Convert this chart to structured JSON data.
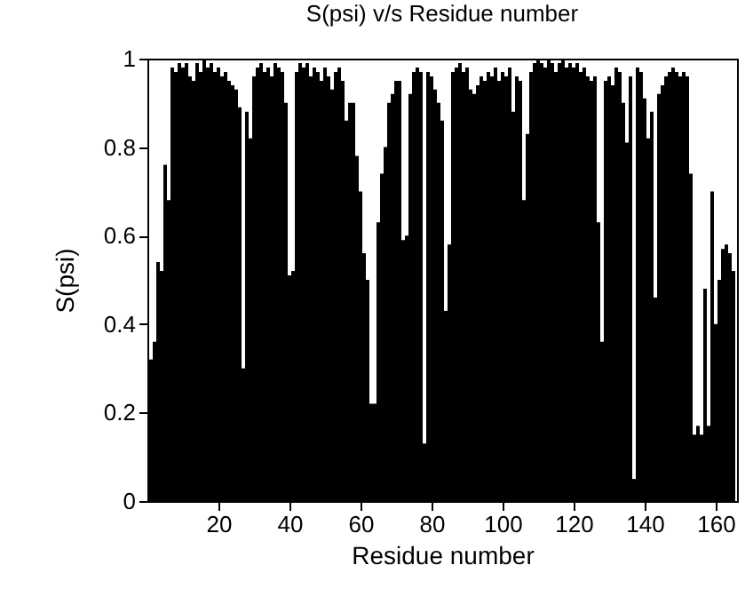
{
  "chart_data": {
    "type": "bar",
    "title": "S(psi) v/s Residue number",
    "xlabel": "Residue number",
    "ylabel": "S(psi)",
    "x": [
      1,
      2,
      3,
      4,
      5,
      6,
      7,
      8,
      9,
      10,
      11,
      12,
      13,
      14,
      15,
      16,
      17,
      18,
      19,
      20,
      21,
      22,
      23,
      24,
      25,
      26,
      27,
      28,
      29,
      30,
      31,
      32,
      33,
      34,
      35,
      36,
      37,
      38,
      39,
      40,
      41,
      42,
      43,
      44,
      45,
      46,
      47,
      48,
      49,
      50,
      51,
      52,
      53,
      54,
      55,
      56,
      57,
      58,
      59,
      60,
      61,
      62,
      63,
      64,
      65,
      66,
      67,
      68,
      69,
      70,
      71,
      72,
      73,
      74,
      75,
      76,
      77,
      78,
      79,
      80,
      81,
      82,
      83,
      84,
      85,
      86,
      87,
      88,
      89,
      90,
      91,
      92,
      93,
      94,
      95,
      96,
      97,
      98,
      99,
      100,
      101,
      102,
      103,
      104,
      105,
      106,
      107,
      108,
      109,
      110,
      111,
      112,
      113,
      114,
      115,
      116,
      117,
      118,
      119,
      120,
      121,
      122,
      123,
      124,
      125,
      126,
      127,
      128,
      129,
      130,
      131,
      132,
      133,
      134,
      135,
      136,
      137,
      138,
      139,
      140,
      141,
      142,
      143,
      144,
      145,
      146,
      147,
      148,
      149,
      150,
      151,
      152,
      153,
      154,
      155,
      156,
      157,
      158,
      159,
      160,
      161,
      162,
      163,
      164,
      165
    ],
    "values": [
      0.32,
      0.36,
      0.54,
      0.52,
      0.76,
      0.68,
      0.98,
      0.97,
      0.99,
      0.98,
      0.99,
      0.96,
      0.95,
      0.99,
      0.97,
      1.0,
      0.98,
      0.99,
      0.97,
      0.98,
      0.96,
      0.97,
      0.95,
      0.94,
      0.93,
      0.89,
      0.3,
      0.88,
      0.82,
      0.96,
      0.98,
      0.99,
      0.97,
      0.98,
      0.96,
      0.99,
      0.98,
      0.97,
      0.9,
      0.51,
      0.52,
      0.97,
      0.99,
      0.98,
      0.99,
      0.96,
      0.98,
      0.97,
      0.95,
      0.98,
      0.96,
      0.93,
      0.97,
      0.98,
      0.95,
      0.86,
      0.9,
      0.9,
      0.78,
      0.7,
      0.56,
      0.5,
      0.22,
      0.22,
      0.63,
      0.74,
      0.8,
      0.9,
      0.92,
      0.95,
      0.95,
      0.59,
      0.6,
      0.92,
      0.97,
      0.98,
      0.97,
      0.13,
      0.97,
      0.96,
      0.93,
      0.9,
      0.86,
      0.43,
      0.58,
      0.97,
      0.98,
      0.99,
      0.97,
      0.98,
      0.93,
      0.92,
      0.94,
      0.96,
      0.95,
      0.97,
      0.96,
      0.98,
      0.95,
      0.97,
      0.96,
      0.98,
      0.88,
      0.96,
      0.95,
      0.68,
      0.83,
      0.97,
      0.99,
      1.0,
      0.99,
      0.98,
      1.0,
      0.99,
      0.97,
      0.99,
      1.0,
      0.98,
      0.99,
      0.98,
      0.99,
      0.97,
      0.98,
      0.96,
      0.95,
      0.96,
      0.63,
      0.36,
      0.95,
      0.96,
      0.94,
      0.98,
      0.97,
      0.9,
      0.81,
      0.96,
      0.05,
      0.98,
      0.97,
      0.91,
      0.82,
      0.88,
      0.46,
      0.92,
      0.94,
      0.96,
      0.97,
      0.98,
      0.97,
      0.96,
      0.97,
      0.96,
      0.74,
      0.15,
      0.17,
      0.15,
      0.48,
      0.17,
      0.7,
      0.4,
      0.5,
      0.57,
      0.58,
      0.56,
      0.52
    ],
    "color": "#000000",
    "xlim": [
      0,
      166
    ],
    "xticks": [
      20,
      40,
      60,
      80,
      100,
      120,
      140,
      160
    ],
    "ylim": [
      0,
      1
    ],
    "yticks": [
      0,
      0.2,
      0.4,
      0.6,
      0.8,
      1
    ],
    "grid": false
  }
}
